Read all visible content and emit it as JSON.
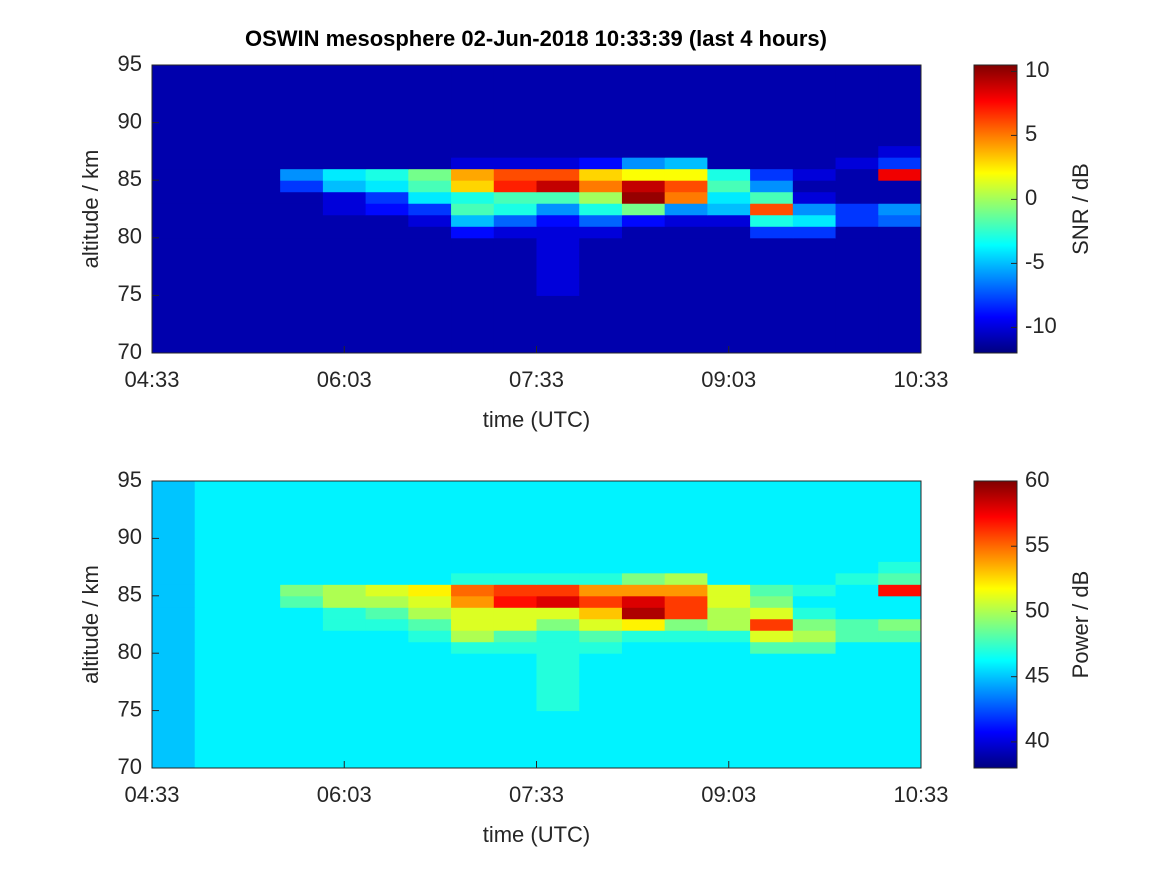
{
  "chart_data": [
    {
      "type": "heatmap",
      "title": "OSWIN mesosphere 02-Jun-2018 10:33:39 (last 4 hours)",
      "xlabel": "time (UTC)",
      "ylabel": "altitude / km",
      "colorbar_label": "SNR / dB",
      "colormap": "jet",
      "xlim": [
        273,
        633
      ],
      "xticks": [
        {
          "value": 273,
          "label": "04:33"
        },
        {
          "value": 363,
          "label": "06:03"
        },
        {
          "value": 453,
          "label": "07:33"
        },
        {
          "value": 543,
          "label": "09:03"
        },
        {
          "value": 633,
          "label": "10:33"
        }
      ],
      "ylim": [
        70,
        95
      ],
      "yticks": [
        70,
        75,
        80,
        85,
        90,
        95
      ],
      "clim": [
        -12,
        10.5
      ],
      "cticks": [
        -10,
        -5,
        0,
        5,
        10
      ],
      "x_bins": [
        273,
        293,
        313,
        333,
        353,
        373,
        393,
        413,
        433,
        453,
        473,
        493,
        513,
        533,
        553,
        573,
        593,
        613,
        633
      ],
      "y_bins": [
        70,
        75,
        80,
        81,
        82,
        83,
        84,
        85,
        86,
        87,
        88,
        90,
        95
      ],
      "values": [
        [
          -11,
          -11,
          -11,
          -11,
          -11,
          -11,
          -11,
          -11,
          -11,
          -11,
          -11,
          -11,
          -11,
          -11,
          -11,
          -11,
          -11,
          -11
        ],
        [
          -11,
          -11,
          -11,
          -11,
          -11,
          -11,
          -11,
          -11,
          -11,
          -10,
          -11,
          -11,
          -11,
          -11,
          -11,
          -11,
          -11,
          -11
        ],
        [
          -11,
          -11,
          -11,
          -11,
          -11,
          -11,
          -11,
          -9,
          -10,
          -10,
          -10,
          -11,
          -11,
          -11,
          -8,
          -8,
          -11,
          -11
        ],
        [
          -11,
          -11,
          -11,
          -11,
          -11,
          -11,
          -10,
          -5,
          -7,
          -9,
          -7,
          -9,
          -10,
          -10,
          -3,
          -4,
          -8,
          -7
        ],
        [
          -11,
          -11,
          -11,
          -11,
          -10,
          -9,
          -8,
          -2,
          -3,
          -6,
          -3,
          -1,
          -6,
          -5,
          6,
          -6,
          -8,
          -6
        ],
        [
          -11,
          -11,
          -11,
          -11,
          -10,
          -8,
          -4,
          -3,
          -2,
          -2,
          0,
          10,
          5,
          -4,
          -2,
          -10,
          -11,
          -11
        ],
        [
          -11,
          -11,
          -11,
          -8,
          -5,
          -4,
          -2,
          3,
          7,
          9,
          5,
          9,
          6,
          -2,
          -6,
          -11,
          -11,
          -11
        ],
        [
          -11,
          -11,
          -11,
          -6,
          -4,
          -3,
          -1,
          4,
          6,
          6,
          3,
          2,
          2,
          -3,
          -8,
          -10,
          -11,
          8
        ],
        [
          -11,
          -11,
          -11,
          -11,
          -11,
          -11,
          -11,
          -10,
          -10,
          -10,
          -9,
          -6,
          -5,
          -11,
          -11,
          -11,
          -10,
          -8
        ],
        [
          -11,
          -11,
          -11,
          -11,
          -11,
          -11,
          -11,
          -11,
          -11,
          -11,
          -11,
          -11,
          -11,
          -11,
          -11,
          -11,
          -11,
          -10
        ],
        [
          -11,
          -11,
          -11,
          -11,
          -11,
          -11,
          -11,
          -11,
          -11,
          -11,
          -11,
          -11,
          -11,
          -11,
          -11,
          -11,
          -11,
          -11
        ],
        [
          -11,
          -11,
          -11,
          -11,
          -11,
          -11,
          -11,
          -11,
          -11,
          -11,
          -11,
          -11,
          -11,
          -11,
          -11,
          -11,
          -11,
          -11
        ]
      ]
    },
    {
      "type": "heatmap",
      "xlabel": "time (UTC)",
      "ylabel": "altitude / km",
      "colorbar_label": "Power / dB",
      "colormap": "jet",
      "xlim": [
        273,
        633
      ],
      "xticks": [
        {
          "value": 273,
          "label": "04:33"
        },
        {
          "value": 363,
          "label": "06:03"
        },
        {
          "value": 453,
          "label": "07:33"
        },
        {
          "value": 543,
          "label": "09:03"
        },
        {
          "value": 633,
          "label": "10:33"
        }
      ],
      "ylim": [
        70,
        95
      ],
      "yticks": [
        70,
        75,
        80,
        85,
        90,
        95
      ],
      "clim": [
        38,
        60
      ],
      "cticks": [
        40,
        45,
        50,
        55,
        60
      ],
      "x_bins": [
        273,
        293,
        313,
        333,
        353,
        373,
        393,
        413,
        433,
        453,
        473,
        493,
        513,
        533,
        553,
        573,
        593,
        613,
        633
      ],
      "y_bins": [
        70,
        75,
        80,
        81,
        82,
        83,
        84,
        85,
        86,
        87,
        88,
        90,
        95
      ],
      "values": [
        [
          45,
          46,
          46,
          46,
          46,
          46,
          46,
          46,
          46,
          46,
          46,
          46,
          46,
          46,
          46,
          46,
          46,
          46
        ],
        [
          45,
          46,
          46,
          46,
          46,
          46,
          46,
          46,
          46,
          47,
          46,
          46,
          46,
          46,
          46,
          46,
          46,
          46
        ],
        [
          45,
          46,
          46,
          46,
          46,
          46,
          46,
          47,
          47,
          47,
          47,
          46,
          46,
          46,
          48,
          48,
          46,
          46
        ],
        [
          45,
          46,
          46,
          46,
          46,
          46,
          47,
          50,
          48,
          47,
          48,
          47,
          47,
          47,
          51,
          50,
          48,
          48
        ],
        [
          45,
          46,
          46,
          46,
          47,
          47,
          48,
          51,
          51,
          49,
          51,
          52,
          49,
          50,
          56,
          49,
          48,
          49
        ],
        [
          45,
          46,
          46,
          46,
          47,
          48,
          50,
          51,
          51,
          51,
          53,
          59,
          56,
          50,
          51,
          47,
          46,
          46
        ],
        [
          45,
          46,
          46,
          48,
          50,
          50,
          51,
          54,
          57,
          58,
          56,
          58,
          56,
          51,
          49,
          46,
          46,
          46
        ],
        [
          45,
          46,
          46,
          49,
          50,
          51,
          52,
          55,
          56,
          56,
          54,
          54,
          54,
          51,
          48,
          47,
          46,
          57
        ],
        [
          45,
          46,
          46,
          46,
          46,
          46,
          46,
          47,
          47,
          47,
          47,
          49,
          50,
          46,
          46,
          46,
          47,
          48
        ],
        [
          45,
          46,
          46,
          46,
          46,
          46,
          46,
          46,
          46,
          46,
          46,
          46,
          46,
          46,
          46,
          46,
          46,
          47
        ],
        [
          45,
          46,
          46,
          46,
          46,
          46,
          46,
          46,
          46,
          46,
          46,
          46,
          46,
          46,
          46,
          46,
          46,
          46
        ],
        [
          45,
          46,
          46,
          46,
          46,
          46,
          46,
          46,
          46,
          46,
          46,
          46,
          46,
          46,
          46,
          46,
          46,
          46
        ]
      ]
    }
  ]
}
